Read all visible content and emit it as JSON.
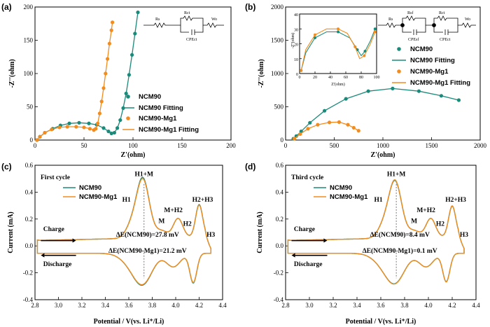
{
  "colors": {
    "ncm90": "#1a8a7a",
    "mg1": "#f28c1e"
  },
  "chart_data": [
    {
      "panel": "(a)",
      "type": "scatter",
      "xlabel": "Z'(ohm)",
      "ylabel": "-Z''(ohm)",
      "xlim": [
        0,
        200
      ],
      "ylim": [
        0,
        200
      ],
      "xticks": [
        "0",
        "50",
        "100",
        "150",
        "200"
      ],
      "yticks": [
        "0",
        "50",
        "100",
        "150",
        "200"
      ],
      "legend": [
        "NCM90",
        "NCM90 Fitting",
        "NCM90-Mg1",
        "NCM90-Mg1 Fitting"
      ],
      "circuit_labels": [
        "Rs",
        "Rct",
        "Wo",
        "CPEct"
      ],
      "series": [
        {
          "name": "NCM90",
          "points": [
            [
              2,
              0
            ],
            [
              5,
              5
            ],
            [
              10,
              11
            ],
            [
              18,
              17
            ],
            [
              26,
              22
            ],
            [
              35,
              25
            ],
            [
              45,
              26
            ],
            [
              55,
              25
            ],
            [
              63,
              23
            ],
            [
              70,
              18
            ],
            [
              75,
              13
            ],
            [
              78,
              10
            ],
            [
              81,
              11
            ],
            [
              84,
              18
            ],
            [
              87,
              30
            ],
            [
              90,
              48
            ],
            [
              93,
              70
            ],
            [
              96,
              98
            ],
            [
              99,
              128
            ],
            [
              102,
              160
            ],
            [
              105,
              192
            ]
          ]
        },
        {
          "name": "NCM90-Mg1",
          "points": [
            [
              2,
              0
            ],
            [
              5,
              5
            ],
            [
              10,
              11
            ],
            [
              17,
              16
            ],
            [
              25,
              19
            ],
            [
              33,
              20
            ],
            [
              42,
              20
            ],
            [
              50,
              19
            ],
            [
              56,
              17
            ],
            [
              60,
              15
            ],
            [
              62,
              17
            ],
            [
              64,
              25
            ],
            [
              66,
              40
            ],
            [
              68,
              58
            ],
            [
              70,
              78
            ],
            [
              72,
              100
            ],
            [
              74,
              122
            ],
            [
              76,
              145
            ],
            [
              78,
              165
            ],
            [
              79,
              177
            ]
          ]
        }
      ]
    },
    {
      "panel": "(b)",
      "type": "scatter",
      "xlabel": "Z'(ohm)",
      "ylabel": "-Z''(ohm)",
      "xlim": [
        0,
        2000
      ],
      "ylim": [
        0,
        2000
      ],
      "xticks": [
        "0",
        "500",
        "1000",
        "1500",
        "2000"
      ],
      "yticks": [
        "0",
        "500",
        "1000",
        "1500",
        "2000"
      ],
      "legend": [
        "NCM90",
        "NCM90 Fitting",
        "NCM90-Mg1",
        "NCM90-Mg1 Fitting"
      ],
      "circuit_labels": [
        "Rs",
        "Rsf",
        "Rct",
        "Wo",
        "CPEsf",
        "CPEct"
      ],
      "inset": {
        "xlabel": "Z'(ohm)",
        "ylabel": "-Z''(ohm)",
        "xticks": [
          "0",
          "20",
          "40",
          "60",
          "80",
          "100"
        ],
        "yticks": [
          "0",
          "10",
          "20",
          "30",
          "40"
        ]
      },
      "series": [
        {
          "name": "NCM90",
          "points": [
            [
              80,
              20
            ],
            [
              110,
              60
            ],
            [
              160,
              130
            ],
            [
              250,
              260
            ],
            [
              400,
              440
            ],
            [
              620,
              620
            ],
            [
              850,
              735
            ],
            [
              1100,
              775
            ],
            [
              1370,
              735
            ],
            [
              1600,
              665
            ],
            [
              1780,
              600
            ]
          ]
        },
        {
          "name": "NCM90-Mg1",
          "points": [
            [
              90,
              20
            ],
            [
              150,
              90
            ],
            [
              230,
              170
            ],
            [
              330,
              230
            ],
            [
              450,
              265
            ],
            [
              550,
              270
            ],
            [
              640,
              230
            ],
            [
              700,
              185
            ],
            [
              750,
              140
            ]
          ]
        }
      ]
    },
    {
      "panel": "(c)",
      "type": "line",
      "title": "First cycle",
      "xlabel": "Potential / V(vs. Li⁺/Li)",
      "ylabel": "Current (mA)",
      "xlim": [
        2.8,
        4.4
      ],
      "ylim": [
        -0.4,
        0.6
      ],
      "xticks": [
        "2.8",
        "3.0",
        "3.2",
        "3.4",
        "3.6",
        "3.8",
        "4.0",
        "4.2",
        "4.4"
      ],
      "yticks": [
        "-0.4",
        "-0.2",
        "0.0",
        "0.2",
        "0.4",
        "0.6"
      ],
      "legend": [
        "NCM90",
        "NCM90-Mg1"
      ],
      "peaks": [
        "H1+M",
        "H1",
        "M",
        "M+H2",
        "H2",
        "H2+H3",
        "H3"
      ],
      "arrows": [
        "Charge",
        "Discharge"
      ],
      "delta_e": [
        "ΔE(NCM90)=27.8 mV",
        "ΔE(NCM90-Mg1)=21.2 mV"
      ]
    },
    {
      "panel": "(d)",
      "type": "line",
      "title": "Third cycle",
      "xlabel": "Potential / V(vs. Li⁺/Li)",
      "ylabel": "Current (mA)",
      "xlim": [
        2.8,
        4.4
      ],
      "ylim": [
        -0.4,
        0.6
      ],
      "xticks": [
        "2.8",
        "3.0",
        "3.2",
        "3.4",
        "3.6",
        "3.8",
        "4.0",
        "4.2",
        "4.4"
      ],
      "yticks": [
        "-0.4",
        "-0.2",
        "0.0",
        "0.2",
        "0.4",
        "0.6"
      ],
      "legend": [
        "NCM90",
        "NCM90-Mg1"
      ],
      "peaks": [
        "H1+M",
        "H1",
        "M",
        "M+H2",
        "H2",
        "H2+H3",
        "H3"
      ],
      "arrows": [
        "Charge",
        "Discharge"
      ],
      "delta_e": [
        "ΔE(NCM90)=8.4 mV",
        "ΔE(NCM90-Mg1)=0.1 mV"
      ]
    }
  ]
}
